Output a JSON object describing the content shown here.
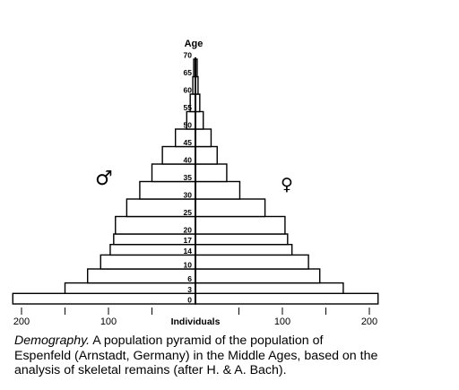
{
  "chart_data": {
    "type": "bar",
    "subtype": "population-pyramid",
    "y_axis_title": "Age",
    "x_axis_title": "Individuals",
    "male_symbol": "♂",
    "female_symbol": "♀",
    "age_tick_labels": [
      "70",
      "65",
      "60",
      "55",
      "50",
      "45",
      "40",
      "35",
      "30",
      "25",
      "20",
      "17",
      "14",
      "10",
      "6",
      "3",
      "0"
    ],
    "x_tick_labels": {
      "male": [
        "200",
        "100"
      ],
      "female": [
        "100",
        "200"
      ]
    },
    "xlim": [
      -210,
      210
    ],
    "age_groups": [
      {
        "from": 0,
        "to": 3,
        "male": 210,
        "female": 210
      },
      {
        "from": 3,
        "to": 6,
        "male": 150,
        "female": 170
      },
      {
        "from": 6,
        "to": 10,
        "male": 124,
        "female": 143
      },
      {
        "from": 10,
        "to": 14,
        "male": 109,
        "female": 130
      },
      {
        "from": 14,
        "to": 17,
        "male": 98,
        "female": 111
      },
      {
        "from": 17,
        "to": 20,
        "male": 94,
        "female": 106
      },
      {
        "from": 20,
        "to": 25,
        "male": 92,
        "female": 103
      },
      {
        "from": 25,
        "to": 30,
        "male": 79,
        "female": 80
      },
      {
        "from": 30,
        "to": 35,
        "male": 64,
        "female": 51
      },
      {
        "from": 35,
        "to": 40,
        "male": 50,
        "female": 36
      },
      {
        "from": 40,
        "to": 45,
        "male": 38,
        "female": 25
      },
      {
        "from": 45,
        "to": 50,
        "male": 23,
        "female": 18
      },
      {
        "from": 50,
        "to": 55,
        "male": 10,
        "female": 9
      },
      {
        "from": 55,
        "to": 60,
        "male": 6,
        "female": 5
      },
      {
        "from": 60,
        "to": 65,
        "male": 3,
        "female": 3
      },
      {
        "from": 65,
        "to": 70,
        "male": 2,
        "female": 2
      }
    ]
  },
  "caption": {
    "lead": "Demography.",
    "text": " A population pyramid of the population of Espenfeld (Arnstadt, Germany) in the Middle Ages, based on the analysis of skeletal remains (after H. & A. Bach)."
  },
  "colors": {
    "ink": "#000000",
    "paper": "#ffffff"
  }
}
